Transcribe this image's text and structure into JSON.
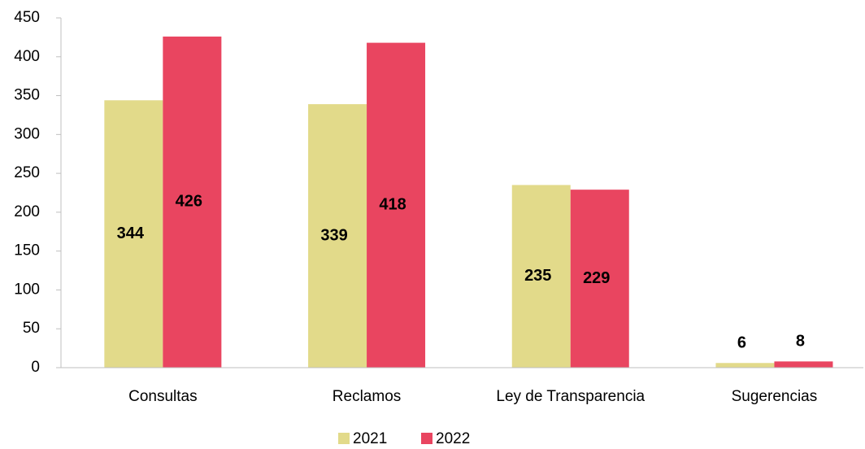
{
  "chart_data": {
    "type": "bar",
    "categories": [
      "Consultas",
      "Reclamos",
      "Ley de Transparencia",
      "Sugerencias"
    ],
    "series": [
      {
        "name": "2021",
        "color": "#e2da8a",
        "values": [
          344,
          339,
          235,
          6
        ]
      },
      {
        "name": "2022",
        "color": "#e94560",
        "values": [
          426,
          418,
          229,
          8
        ]
      }
    ],
    "ylim": [
      0,
      450
    ],
    "yticks": [
      0,
      50,
      100,
      150,
      200,
      250,
      300,
      350,
      400,
      450
    ],
    "grid": false,
    "legend": "bottom"
  }
}
